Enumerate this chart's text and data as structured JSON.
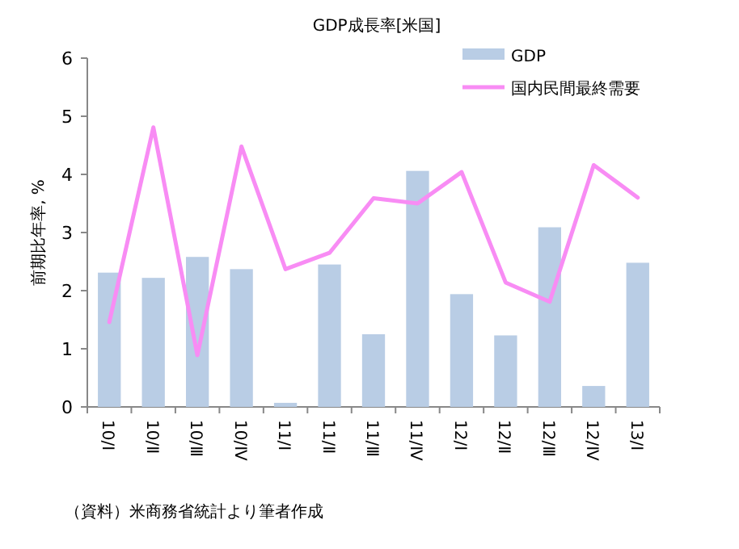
{
  "chart_data": {
    "type": "bar",
    "title": "GDP成長率[米国]",
    "ylabel": "前期比年率, %",
    "categories": [
      "10/Ⅰ",
      "10/Ⅱ",
      "10/Ⅲ",
      "10/Ⅳ",
      "11/Ⅰ",
      "11/Ⅱ",
      "11/Ⅲ",
      "11/Ⅳ",
      "12/Ⅰ",
      "12/Ⅱ",
      "12/Ⅲ",
      "12/Ⅳ",
      "13/Ⅰ"
    ],
    "series": [
      {
        "name": "GDP",
        "color": "#b9cde5",
        "values": [
          2.31,
          2.22,
          2.58,
          2.37,
          0.07,
          2.45,
          1.25,
          4.06,
          1.94,
          1.23,
          3.09,
          0.36,
          2.48
        ]
      },
      {
        "name": "国内民間最終需要",
        "type": "line",
        "color": "#f88cf4",
        "values": [
          1.46,
          4.81,
          0.89,
          4.48,
          2.37,
          2.65,
          3.59,
          3.5,
          4.04,
          2.14,
          1.81,
          4.16,
          3.6
        ]
      }
    ],
    "ylim": [
      0,
      6
    ],
    "yticks": [
      0,
      1,
      2,
      3,
      4,
      5,
      6
    ],
    "grid": false,
    "legend": "top right",
    "annotations": [
      "（資料）米商務省統計より筆者作成"
    ]
  }
}
